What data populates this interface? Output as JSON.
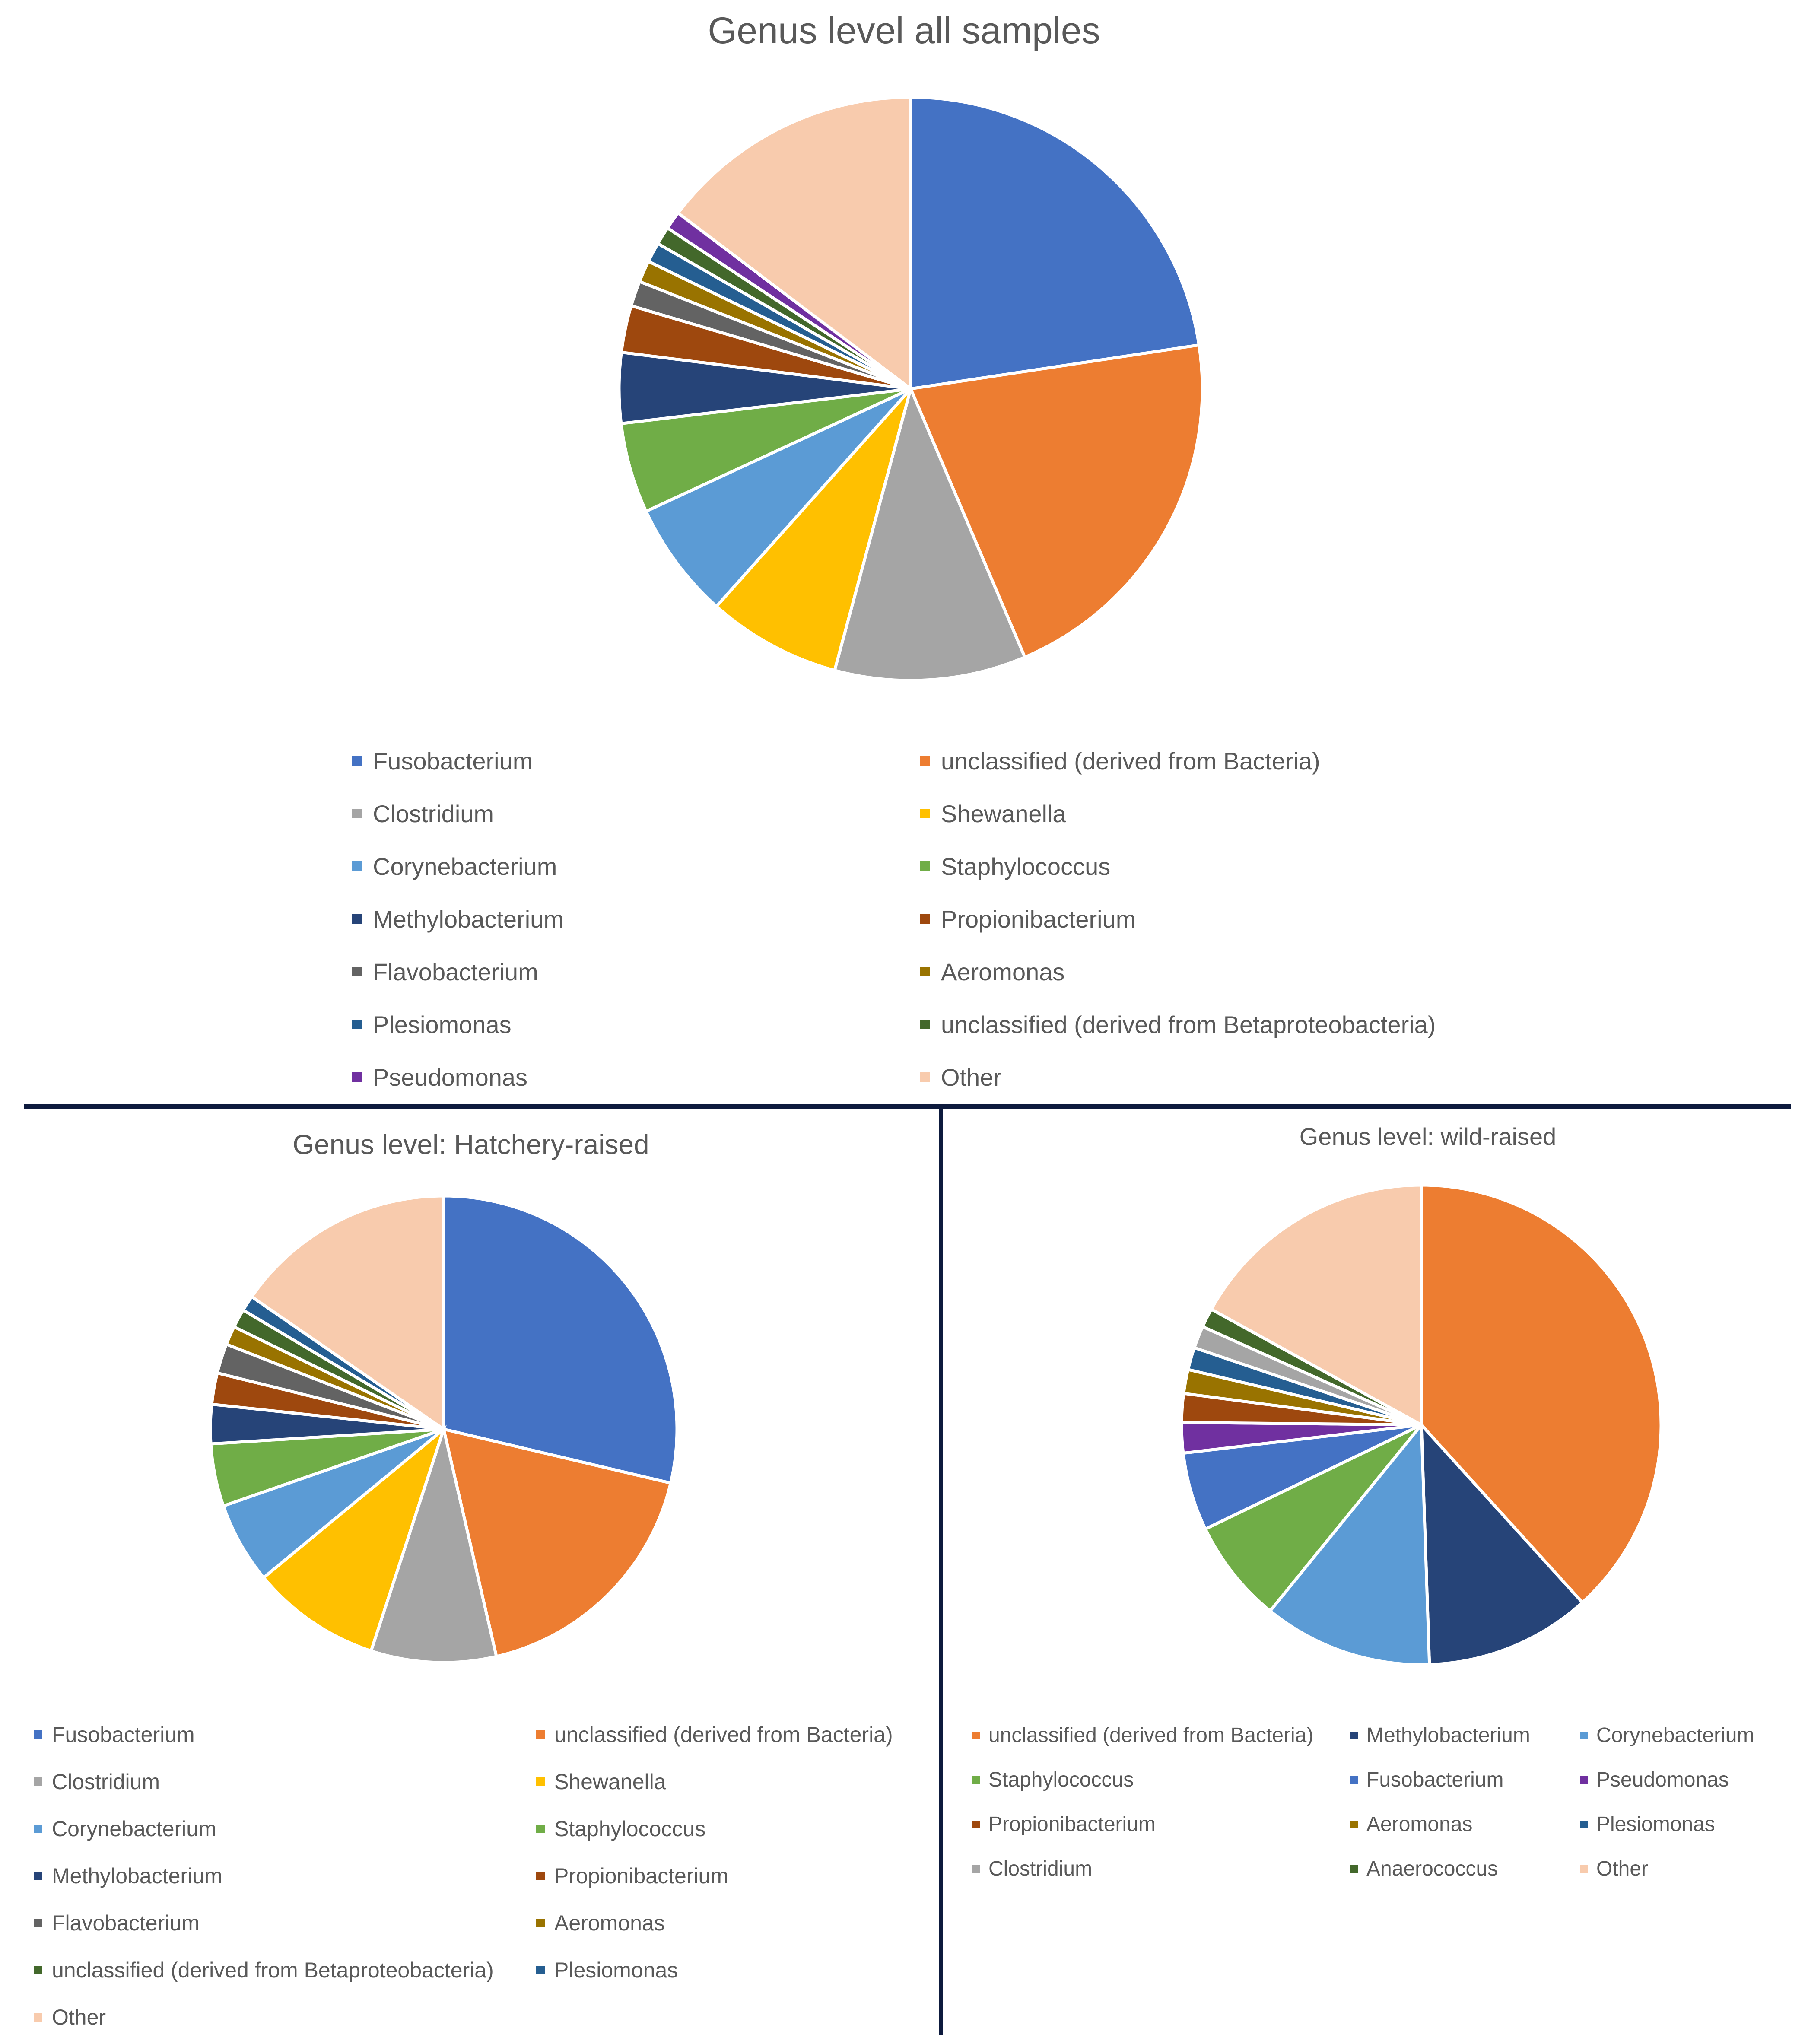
{
  "chart_data": [
    {
      "type": "pie",
      "title": "Genus level all samples",
      "slices": [
        {
          "label": "Fusobacterium",
          "value": 22.6,
          "color": "#4472C4"
        },
        {
          "label": "unclassified (derived from Bacteria)",
          "value": 21.0,
          "color": "#ED7D31"
        },
        {
          "label": "Clostridium",
          "value": 10.6,
          "color": "#A5A5A5"
        },
        {
          "label": "Shewanella",
          "value": 7.4,
          "color": "#FFC000"
        },
        {
          "label": "Corynebacterium",
          "value": 6.5,
          "color": "#5B9BD5"
        },
        {
          "label": "Staphylococcus",
          "value": 5.0,
          "color": "#70AD47"
        },
        {
          "label": "Methylobacterium",
          "value": 3.9,
          "color": "#264478"
        },
        {
          "label": "Propionibacterium",
          "value": 2.6,
          "color": "#9E480E"
        },
        {
          "label": "Flavobacterium",
          "value": 1.4,
          "color": "#636363"
        },
        {
          "label": "Aeromonas",
          "value": 1.2,
          "color": "#997300"
        },
        {
          "label": "Plesiomonas",
          "value": 1.1,
          "color": "#255E91"
        },
        {
          "label": "unclassified (derived from Betaproteobacteria)",
          "value": 1.0,
          "color": "#43682B"
        },
        {
          "label": "Pseudomonas",
          "value": 1.0,
          "color": "#7030A0"
        },
        {
          "label": "Other",
          "value": 14.7,
          "color": "#F8CBAD"
        }
      ],
      "legend": [
        [
          "Fusobacterium",
          "unclassified (derived from Bacteria)"
        ],
        [
          "Clostridium",
          "Shewanella"
        ],
        [
          "Corynebacterium",
          "Staphylococcus"
        ],
        [
          "Methylobacterium",
          "Propionibacterium"
        ],
        [
          "Flavobacterium",
          "Aeromonas"
        ],
        [
          "Plesiomonas",
          "unclassified (derived from Betaproteobacteria)"
        ],
        [
          "Pseudomonas",
          "Other"
        ]
      ]
    },
    {
      "type": "pie",
      "title": "Genus level: Hatchery-raised",
      "slices": [
        {
          "label": "Fusobacterium",
          "value": 26.5,
          "color": "#4472C4"
        },
        {
          "label": "unclassified (derived from Bacteria)",
          "value": 16.3,
          "color": "#ED7D31"
        },
        {
          "label": "Clostridium",
          "value": 8.0,
          "color": "#A5A5A5"
        },
        {
          "label": "Shewanella",
          "value": 8.3,
          "color": "#FFC000"
        },
        {
          "label": "Corynebacterium",
          "value": 5.2,
          "color": "#5B9BD5"
        },
        {
          "label": "Staphylococcus",
          "value": 4.0,
          "color": "#70AD47"
        },
        {
          "label": "Methylobacterium",
          "value": 2.5,
          "color": "#264478"
        },
        {
          "label": "Propionibacterium",
          "value": 2.0,
          "color": "#9E480E"
        },
        {
          "label": "Flavobacterium",
          "value": 1.9,
          "color": "#636363"
        },
        {
          "label": "Aeromonas",
          "value": 1.2,
          "color": "#997300"
        },
        {
          "label": "unclassified (derived from Betaproteobacteria)",
          "value": 1.2,
          "color": "#43682B"
        },
        {
          "label": "Plesiomonas",
          "value": 1.0,
          "color": "#255E91"
        },
        {
          "label": "Other",
          "value": 14.2,
          "color": "#F8CBAD"
        }
      ],
      "legend": [
        [
          "Fusobacterium",
          "unclassified (derived from Bacteria)"
        ],
        [
          "Clostridium",
          "Shewanella"
        ],
        [
          "Corynebacterium",
          "Staphylococcus"
        ],
        [
          "Methylobacterium",
          "Propionibacterium"
        ],
        [
          "Flavobacterium",
          "Aeromonas"
        ],
        [
          "unclassified (derived from Betaproteobacteria)",
          "Plesiomonas"
        ],
        [
          "Other"
        ]
      ]
    },
    {
      "type": "pie",
      "title": "Genus level: wild-raised",
      "slices": [
        {
          "label": "unclassified (derived from Bacteria)",
          "value": 35.6,
          "color": "#ED7D31"
        },
        {
          "label": "Methylobacterium",
          "value": 10.4,
          "color": "#264478"
        },
        {
          "label": "Corynebacterium",
          "value": 10.6,
          "color": "#5B9BD5"
        },
        {
          "label": "Staphylococcus",
          "value": 6.5,
          "color": "#70AD47"
        },
        {
          "label": "Fusobacterium",
          "value": 4.9,
          "color": "#4472C4"
        },
        {
          "label": "Pseudomonas",
          "value": 1.9,
          "color": "#7030A0"
        },
        {
          "label": "Propionibacterium",
          "value": 1.8,
          "color": "#9E480E"
        },
        {
          "label": "Aeromonas",
          "value": 1.5,
          "color": "#997300"
        },
        {
          "label": "Plesiomonas",
          "value": 1.4,
          "color": "#255E91"
        },
        {
          "label": "Clostridium",
          "value": 1.4,
          "color": "#A5A5A5"
        },
        {
          "label": "Anaerococcus",
          "value": 1.2,
          "color": "#43682B"
        },
        {
          "label": "Other",
          "value": 15.8,
          "color": "#F8CBAD"
        }
      ],
      "legend": [
        [
          "unclassified (derived from Bacteria)",
          "Methylobacterium",
          "Corynebacterium"
        ],
        [
          "Staphylococcus",
          "Fusobacterium",
          "Pseudomonas"
        ],
        [
          "Propionibacterium",
          "Aeromonas",
          "Plesiomonas"
        ],
        [
          "Clostridium",
          "Anaerococcus",
          "Other"
        ]
      ]
    }
  ]
}
